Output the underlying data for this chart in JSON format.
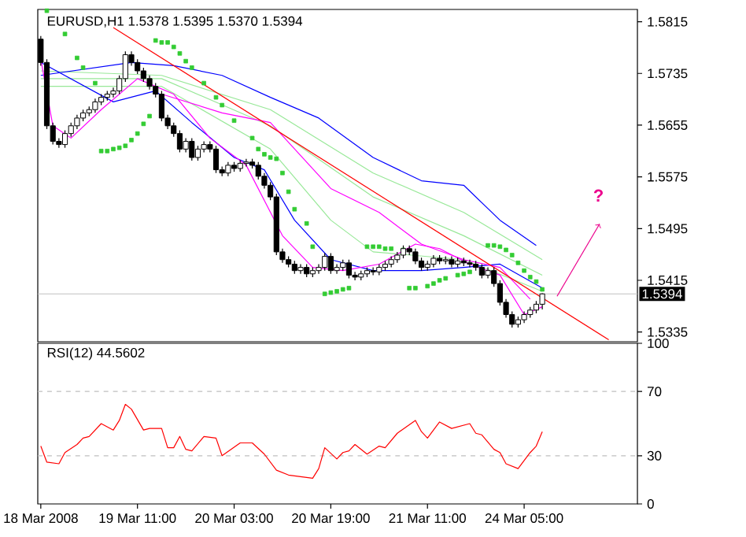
{
  "chart_data": [
    {
      "type": "candlestick",
      "title": "EURUSD,H1  1.5378 1.5395 1.5370 1.5394",
      "categories": [
        null,
        null,
        null,
        null,
        null,
        null,
        null,
        null,
        null,
        null,
        null,
        null,
        null,
        null,
        null,
        null,
        null,
        null,
        null,
        null,
        null,
        null,
        null,
        null,
        null,
        null,
        null,
        null,
        null,
        null,
        null,
        null,
        null,
        null,
        null,
        null,
        null,
        null,
        null,
        null,
        null,
        null,
        null,
        null,
        null,
        null,
        null,
        null,
        null,
        null,
        null,
        null,
        null,
        null,
        null,
        null,
        null,
        null,
        null,
        null,
        null,
        null,
        null,
        null,
        null,
        null,
        null,
        null,
        null,
        null,
        null,
        null,
        null,
        null,
        null,
        null,
        null,
        null,
        null,
        null,
        null,
        null,
        null,
        null,
        null,
        null,
        null,
        null,
        null,
        null,
        null,
        null,
        null,
        null,
        null,
        null,
        null,
        null,
        null
      ],
      "ohlc": [
        [
          1.5788,
          1.5793,
          1.5747,
          1.5752
        ],
        [
          1.5752,
          1.5757,
          1.5649,
          1.5654
        ],
        [
          1.5654,
          1.5659,
          1.5625,
          1.563
        ],
        [
          1.563,
          1.5635,
          1.562,
          1.5625
        ],
        [
          1.5625,
          1.5647,
          1.562,
          1.5642
        ],
        [
          1.5642,
          1.5659,
          1.5637,
          1.5654
        ],
        [
          1.5654,
          1.5671,
          1.5649,
          1.5666
        ],
        [
          1.5666,
          1.5679,
          1.5661,
          1.5674
        ],
        [
          1.5674,
          1.5684,
          1.5669,
          1.5679
        ],
        [
          1.5679,
          1.5696,
          1.5674,
          1.5691
        ],
        [
          1.5691,
          1.5703,
          1.5686,
          1.5698
        ],
        [
          1.5698,
          1.5708,
          1.5693,
          1.5703
        ],
        [
          1.5703,
          1.5713,
          1.5698,
          1.5708
        ],
        [
          1.5708,
          1.5732,
          1.5703,
          1.5727
        ],
        [
          1.5727,
          1.5769,
          1.5722,
          1.5764
        ],
        [
          1.5764,
          1.5769,
          1.5747,
          1.5752
        ],
        [
          1.5752,
          1.5757,
          1.5734,
          1.5739
        ],
        [
          1.5739,
          1.5744,
          1.5722,
          1.5727
        ],
        [
          1.5727,
          1.5732,
          1.571,
          1.5715
        ],
        [
          1.5715,
          1.572,
          1.5698,
          1.5703
        ],
        [
          1.5703,
          1.5708,
          1.5661,
          1.5666
        ],
        [
          1.5666,
          1.5671,
          1.5649,
          1.5654
        ],
        [
          1.5654,
          1.5659,
          1.5637,
          1.5642
        ],
        [
          1.5642,
          1.5647,
          1.5613,
          1.5618
        ],
        [
          1.5618,
          1.5635,
          1.5613,
          1.563
        ],
        [
          1.563,
          1.5635,
          1.56,
          1.5605
        ],
        [
          1.5605,
          1.5623,
          1.56,
          1.5618
        ],
        [
          1.5618,
          1.563,
          1.5613,
          1.5625
        ],
        [
          1.5625,
          1.563,
          1.5613,
          1.5618
        ],
        [
          1.5618,
          1.5623,
          1.5581,
          1.5586
        ],
        [
          1.5586,
          1.5591,
          1.5576,
          1.5581
        ],
        [
          1.5581,
          1.5598,
          1.5576,
          1.5593
        ],
        [
          1.5593,
          1.5598,
          1.5583,
          1.5588
        ],
        [
          1.5588,
          1.5601,
          1.5583,
          1.5596
        ],
        [
          1.5596,
          1.5603,
          1.5591,
          1.5598
        ],
        [
          1.5598,
          1.5603,
          1.5588,
          1.5593
        ],
        [
          1.5593,
          1.5598,
          1.5571,
          1.5576
        ],
        [
          1.5576,
          1.5581,
          1.5557,
          1.5562
        ],
        [
          1.5562,
          1.5567,
          1.5539,
          1.5544
        ],
        [
          1.5544,
          1.5549,
          1.5454,
          1.5459
        ],
        [
          1.5459,
          1.5464,
          1.5442,
          1.5447
        ],
        [
          1.5447,
          1.5452,
          1.5435,
          1.544
        ],
        [
          1.544,
          1.5445,
          1.5425,
          1.543
        ],
        [
          1.543,
          1.544,
          1.5425,
          1.5435
        ],
        [
          1.5435,
          1.544,
          1.542,
          1.5425
        ],
        [
          1.5425,
          1.5435,
          1.542,
          1.543
        ],
        [
          1.543,
          1.544,
          1.5425,
          1.5435
        ],
        [
          1.5435,
          1.5457,
          1.543,
          1.5452
        ],
        [
          1.5452,
          1.5457,
          1.5425,
          1.543
        ],
        [
          1.543,
          1.544,
          1.5425,
          1.5435
        ],
        [
          1.5435,
          1.5447,
          1.543,
          1.5442
        ],
        [
          1.5442,
          1.5447,
          1.5418,
          1.5423
        ],
        [
          1.5423,
          1.5428,
          1.5415,
          1.542
        ],
        [
          1.542,
          1.543,
          1.5415,
          1.5425
        ],
        [
          1.5425,
          1.5435,
          1.542,
          1.543
        ],
        [
          1.543,
          1.5435,
          1.5423,
          1.5428
        ],
        [
          1.5428,
          1.544,
          1.5423,
          1.5435
        ],
        [
          1.5435,
          1.5445,
          1.543,
          1.544
        ],
        [
          1.544,
          1.5452,
          1.5435,
          1.5447
        ],
        [
          1.5447,
          1.5459,
          1.5442,
          1.5454
        ],
        [
          1.5454,
          1.5469,
          1.5449,
          1.5464
        ],
        [
          1.5464,
          1.5469,
          1.5454,
          1.5459
        ],
        [
          1.5459,
          1.5464,
          1.544,
          1.5445
        ],
        [
          1.5445,
          1.545,
          1.543,
          1.5435
        ],
        [
          1.5435,
          1.5445,
          1.543,
          1.544
        ],
        [
          1.544,
          1.5454,
          1.5435,
          1.5449
        ],
        [
          1.5449,
          1.5454,
          1.544,
          1.5445
        ],
        [
          1.5445,
          1.5452,
          1.544,
          1.5447
        ],
        [
          1.5447,
          1.5452,
          1.5435,
          1.544
        ],
        [
          1.544,
          1.545,
          1.5435,
          1.5445
        ],
        [
          1.5445,
          1.545,
          1.5437,
          1.5442
        ],
        [
          1.5442,
          1.5447,
          1.5435,
          1.544
        ],
        [
          1.544,
          1.5445,
          1.543,
          1.5435
        ],
        [
          1.5435,
          1.544,
          1.5418,
          1.5423
        ],
        [
          1.5423,
          1.5435,
          1.5418,
          1.543
        ],
        [
          1.543,
          1.5435,
          1.5405,
          1.541
        ],
        [
          1.541,
          1.5415,
          1.5376,
          1.5381
        ],
        [
          1.5381,
          1.5386,
          1.5357,
          1.5362
        ],
        [
          1.5362,
          1.5367,
          1.5342,
          1.5347
        ],
        [
          1.5347,
          1.5359,
          1.5342,
          1.5354
        ],
        [
          1.5354,
          1.5367,
          1.5349,
          1.5362
        ],
        [
          1.5362,
          1.5374,
          1.5357,
          1.5369
        ],
        [
          1.5369,
          1.5383,
          1.5364,
          1.5378
        ],
        [
          1.5378,
          1.5395,
          1.537,
          1.5394
        ],
        null,
        null,
        null,
        null,
        null,
        null,
        null,
        null,
        null,
        null,
        null,
        null,
        null,
        null,
        null
      ],
      "series": [
        {
          "type": "line",
          "color": "#98e898",
          "values": [
            1.5739,
            null,
            null,
            null,
            null,
            null,
            null,
            null,
            null,
            null,
            null,
            null,
            null,
            null,
            null,
            null,
            null,
            null,
            null,
            null,
            1.5732,
            null,
            null,
            null,
            null,
            null,
            null,
            null,
            null,
            null,
            null,
            null,
            null,
            null,
            null,
            null,
            null,
            null,
            1.5679,
            null,
            null,
            null,
            null,
            null,
            null,
            null,
            null,
            null,
            null,
            null,
            null,
            null,
            null,
            null,
            null,
            1.5581,
            null,
            null,
            null,
            null,
            null,
            null,
            null,
            null,
            null,
            null,
            null,
            null,
            null,
            null,
            1.552,
            null,
            null,
            null,
            null,
            null,
            null,
            null,
            null,
            null,
            null,
            null,
            null,
            1.5447,
            null,
            null,
            null,
            null,
            null,
            null,
            null,
            null,
            null,
            null,
            null,
            null,
            null,
            null,
            null
          ]
        },
        {
          "type": "line",
          "color": "#98e898",
          "values": [
            1.5727,
            null,
            null,
            null,
            null,
            null,
            null,
            null,
            null,
            null,
            null,
            null,
            null,
            null,
            null,
            null,
            null,
            null,
            null,
            null,
            1.5727,
            null,
            null,
            null,
            null,
            null,
            null,
            null,
            null,
            null,
            null,
            null,
            null,
            null,
            null,
            null,
            null,
            null,
            1.5654,
            null,
            null,
            null,
            null,
            null,
            null,
            null,
            null,
            null,
            null,
            null,
            null,
            null,
            null,
            null,
            null,
            1.5544,
            null,
            null,
            null,
            null,
            null,
            null,
            null,
            null,
            null,
            null,
            null,
            null,
            null,
            null,
            1.5484,
            null,
            null,
            null,
            null,
            null,
            null,
            null,
            null,
            null,
            null,
            null,
            null,
            1.5423,
            null,
            null,
            null,
            null,
            null,
            null,
            null,
            null,
            null,
            null,
            null,
            null,
            null,
            null,
            null
          ]
        },
        {
          "type": "line",
          "color": "#98e898",
          "values": [
            1.5715,
            null,
            null,
            null,
            null,
            null,
            null,
            null,
            null,
            null,
            null,
            null,
            null,
            null,
            null,
            null,
            null,
            null,
            null,
            null,
            1.5715,
            null,
            null,
            null,
            null,
            null,
            null,
            null,
            null,
            null,
            null,
            null,
            null,
            null,
            null,
            null,
            null,
            null,
            1.5618,
            null,
            null,
            null,
            null,
            null,
            null,
            null,
            null,
            null,
            1.5508,
            null,
            null,
            null,
            null,
            null,
            null,
            1.5459,
            null,
            null,
            null,
            null,
            null,
            null,
            null,
            null,
            null,
            null,
            null,
            null,
            null,
            null,
            1.5447,
            null,
            null,
            null,
            null,
            null,
            null,
            null,
            null,
            null,
            null,
            null,
            null,
            1.5398,
            null,
            null,
            null,
            null,
            null,
            null,
            null,
            null,
            null,
            null,
            null,
            null,
            null,
            null,
            null
          ]
        },
        {
          "type": "line",
          "color": "#0000ff",
          "values": [
            1.5732,
            null,
            null,
            null,
            null,
            null,
            null,
            null,
            null,
            null,
            null,
            null,
            null,
            null,
            null,
            1.5752,
            null,
            null,
            null,
            null,
            null,
            null,
            1.5747,
            null,
            null,
            null,
            null,
            null,
            null,
            null,
            1.5732,
            null,
            null,
            null,
            null,
            null,
            null,
            null,
            1.5698,
            null,
            null,
            null,
            null,
            null,
            null,
            null,
            1.5666,
            null,
            null,
            null,
            null,
            null,
            null,
            null,
            null,
            1.5605,
            null,
            null,
            null,
            null,
            null,
            null,
            null,
            1.5569,
            null,
            null,
            null,
            null,
            null,
            null,
            1.5562,
            null,
            null,
            null,
            null,
            null,
            1.5508,
            null,
            null,
            null,
            null,
            null,
            1.5469,
            null,
            null,
            null,
            null,
            null,
            null,
            null,
            null,
            null,
            null,
            null,
            null,
            null,
            null,
            null,
            null
          ]
        },
        {
          "type": "line",
          "color": "#0000ff",
          "values": [
            1.5752,
            null,
            null,
            null,
            null,
            null,
            null,
            null,
            null,
            null,
            null,
            null,
            1.5691,
            null,
            null,
            null,
            null,
            null,
            null,
            1.5708,
            null,
            null,
            null,
            null,
            null,
            1.5659,
            null,
            null,
            null,
            null,
            null,
            null,
            1.5605,
            null,
            null,
            null,
            null,
            1.5586,
            null,
            null,
            null,
            null,
            1.5508,
            null,
            null,
            null,
            null,
            null,
            1.5447,
            null,
            null,
            null,
            null,
            null,
            null,
            1.543,
            null,
            null,
            null,
            null,
            null,
            null,
            null,
            1.543,
            null,
            null,
            null,
            null,
            null,
            null,
            1.5435,
            null,
            null,
            null,
            null,
            null,
            1.544,
            null,
            null,
            null,
            null,
            null,
            null,
            1.5403,
            null,
            null,
            null,
            null,
            null,
            null,
            null,
            null,
            null,
            null,
            null,
            null,
            null,
            null,
            null
          ]
        },
        {
          "type": "line",
          "color": "#ff00ff",
          "values": [
            null,
            null,
            null,
            null,
            null,
            null,
            null,
            null,
            null,
            null,
            null,
            null,
            null,
            null,
            null,
            null,
            null,
            null,
            null,
            null,
            1.5703,
            null,
            null,
            null,
            null,
            null,
            null,
            null,
            null,
            null,
            1.5674,
            null,
            null,
            null,
            null,
            null,
            null,
            null,
            1.5659,
            null,
            null,
            null,
            null,
            null,
            null,
            null,
            null,
            null,
            1.5557,
            null,
            null,
            null,
            null,
            null,
            null,
            null,
            1.552,
            null,
            null,
            null,
            null,
            null,
            null,
            1.5471,
            null,
            null,
            null,
            null,
            null,
            null,
            1.5447,
            null,
            null,
            null,
            null,
            null,
            1.5435,
            null,
            null,
            null,
            null,
            1.5386,
            null,
            null,
            null,
            null,
            null,
            null,
            null,
            null,
            null,
            null,
            null,
            null,
            null,
            null,
            null,
            null,
            null
          ]
        },
        {
          "type": "line",
          "color": "#ff00ff",
          "values": [
            1.5757,
            null,
            1.5654,
            null,
            null,
            1.5635,
            null,
            null,
            null,
            null,
            1.5679,
            null,
            null,
            null,
            null,
            null,
            1.5727,
            null,
            null,
            null,
            null,
            null,
            1.5703,
            null,
            null,
            null,
            null,
            null,
            1.5635,
            null,
            null,
            null,
            null,
            null,
            1.5593,
            null,
            null,
            null,
            null,
            null,
            1.5484,
            null,
            null,
            null,
            null,
            1.5435,
            null,
            null,
            null,
            null,
            1.543,
            null,
            null,
            null,
            null,
            null,
            1.544,
            null,
            null,
            null,
            null,
            null,
            1.5471,
            null,
            null,
            null,
            1.5464,
            null,
            null,
            null,
            null,
            1.544,
            null,
            null,
            null,
            null,
            1.5423,
            null,
            null,
            null,
            1.5362,
            null,
            null,
            1.5374,
            null,
            null,
            null,
            null,
            null,
            null,
            null,
            null,
            null,
            null,
            null,
            null,
            null,
            null,
            null
          ]
        },
        {
          "type": "line",
          "color": "#ff0000",
          "values": [
            null,
            null,
            null,
            null,
            null,
            null,
            null,
            null,
            null,
            null,
            null,
            null,
            1.5806,
            null,
            null,
            null,
            null,
            null,
            null,
            null,
            null,
            null,
            null,
            null,
            null,
            null,
            null,
            null,
            null,
            null,
            null,
            null,
            null,
            null,
            null,
            null,
            null,
            null,
            null,
            null,
            null,
            null,
            null,
            null,
            null,
            null,
            null,
            null,
            null,
            null,
            null,
            null,
            null,
            null,
            null,
            null,
            null,
            null,
            null,
            null,
            null,
            null,
            null,
            null,
            null,
            null,
            null,
            null,
            null,
            null,
            null,
            null,
            null,
            null,
            null,
            null,
            null,
            null,
            null,
            null,
            null,
            null,
            null,
            null,
            null,
            null,
            null,
            null,
            null,
            null,
            null,
            null,
            null,
            null,
            1.5323,
            null,
            null,
            null,
            null
          ]
        },
        {
          "type": "scatter",
          "marker": "square",
          "color": "#33cc33",
          "values": [
            null,
            1.5832,
            null,
            null,
            1.5796,
            null,
            1.5759,
            1.5744,
            null,
            1.572,
            1.5615,
            1.5615,
            1.5618,
            1.562,
            1.5623,
            1.5632,
            1.5642,
            1.5657,
            1.5669,
            1.5786,
            1.5783,
            1.5783,
            1.5776,
            1.5766,
            1.5754,
            1.5744,
            null,
            1.572,
            null,
            1.5698,
            1.5686,
            null,
            1.5662,
            null,
            null,
            1.5635,
            1.5618,
            1.561,
            1.5605,
            1.5603,
            1.5581,
            1.5552,
            1.5525,
            null,
            1.5503,
            1.5467,
            null,
            1.5394,
            1.5396,
            1.5398,
            1.5401,
            1.5403,
            null,
            null,
            1.5467,
            1.5467,
            1.5467,
            1.5464,
            1.5464,
            null,
            1.5462,
            1.5403,
            1.5403,
            null,
            1.5406,
            1.541,
            1.5415,
            1.5418,
            null,
            1.5423,
            1.5425,
            1.5428,
            null,
            null,
            1.5469,
            1.5469,
            1.5467,
            1.5462,
            1.5454,
            1.5442,
            1.543,
            1.542,
            1.5413,
            1.5401,
            null,
            null,
            null,
            null,
            null,
            null,
            null,
            null,
            null,
            null,
            null,
            null,
            null,
            null,
            null
          ]
        }
      ],
      "ylim": [
        1.532,
        1.5834
      ],
      "yticks": [
        1.5335,
        1.5415,
        1.5495,
        1.5575,
        1.5655,
        1.5735,
        1.5815
      ],
      "tick_labels": "y",
      "ref_lines": [
        {
          "axis": "y",
          "value": 1.5394,
          "label": "1.5394",
          "color": "#c0c0c0"
        }
      ],
      "annotations": [
        "?"
      ]
    },
    {
      "type": "line",
      "title": "RSI(12) 44.5602",
      "categories": [
        "18 Mar 2008",
        null,
        null,
        null,
        null,
        null,
        null,
        null,
        null,
        null,
        null,
        null,
        null,
        null,
        null,
        null,
        "19 Mar 11:00",
        null,
        null,
        null,
        null,
        null,
        null,
        null,
        null,
        null,
        null,
        null,
        null,
        null,
        null,
        null,
        "20 Mar 03:00",
        null,
        null,
        null,
        null,
        null,
        null,
        null,
        null,
        null,
        null,
        null,
        null,
        null,
        null,
        null,
        "20 Mar 19:00",
        null,
        null,
        null,
        null,
        null,
        null,
        null,
        null,
        null,
        null,
        null,
        null,
        null,
        null,
        null,
        "21 Mar 11:00",
        null,
        null,
        null,
        null,
        null,
        null,
        null,
        null,
        null,
        null,
        null,
        null,
        null,
        null,
        null,
        "24 Mar 05:00",
        null,
        null,
        null,
        null,
        null,
        null,
        null,
        null,
        null,
        null,
        null,
        null,
        null,
        null,
        null,
        null,
        null,
        null
      ],
      "series": [
        {
          "color": "#ff0000",
          "values": [
            36,
            26,
            null,
            25,
            32,
            null,
            37,
            41,
            42,
            null,
            50,
            null,
            46,
            52,
            62,
            59,
            null,
            46,
            47,
            null,
            47,
            35,
            35,
            42,
            34,
            33,
            null,
            42,
            null,
            41,
            30,
            null,
            null,
            38,
            null,
            38,
            null,
            31,
            null,
            21,
            null,
            18,
            null,
            17,
            null,
            16,
            22,
            35,
            null,
            28,
            32,
            33,
            37,
            null,
            31,
            null,
            36,
            35,
            null,
            44,
            null,
            null,
            52,
            45,
            41,
            null,
            51,
            null,
            47,
            null,
            null,
            50,
            44,
            43,
            null,
            34,
            32,
            25,
            null,
            22,
            null,
            32,
            36,
            45,
            null,
            null,
            null,
            null,
            null,
            null,
            null,
            null,
            null,
            null,
            null,
            null,
            null,
            null,
            null
          ]
        }
      ],
      "ylim": [
        0,
        100
      ],
      "yticks": [
        0,
        30,
        70,
        100
      ],
      "ref_lines": [
        {
          "axis": "y",
          "value": 30,
          "color": "#c0c0c0",
          "line_style": "dashed"
        },
        {
          "axis": "y",
          "value": 70,
          "color": "#c0c0c0",
          "line_style": "dashed"
        }
      ]
    }
  ]
}
